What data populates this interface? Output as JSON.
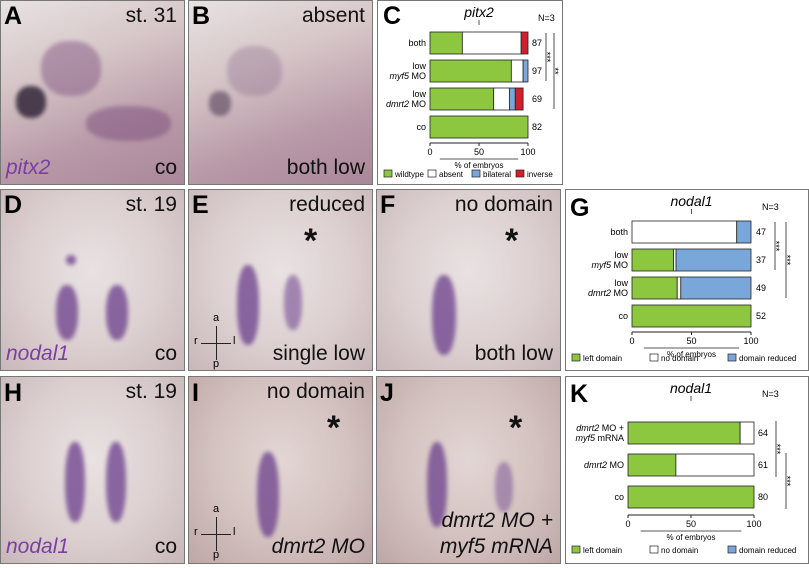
{
  "panels": {
    "A": {
      "letter": "A",
      "top_right": "st. 31",
      "bottom_left": "pitx2",
      "bottom_right": "co"
    },
    "B": {
      "letter": "B",
      "top_right": "absent",
      "bottom_right": "both low"
    },
    "D": {
      "letter": "D",
      "top_right": "st. 19",
      "bottom_left": "nodal1",
      "bottom_right": "co"
    },
    "E": {
      "letter": "E",
      "top_right": "reduced",
      "bottom_right": "single low",
      "star": "*"
    },
    "F": {
      "letter": "F",
      "top_right": "no domain",
      "bottom_right": "both low",
      "star": "*"
    },
    "H": {
      "letter": "H",
      "top_right": "st. 19",
      "bottom_left": "nodal1",
      "bottom_right": "co"
    },
    "I": {
      "letter": "I",
      "top_right": "no domain",
      "bottom_right": "dmrt2 MO",
      "star": "*"
    },
    "J": {
      "letter": "J",
      "bottom_right_line1": "dmrt2 MO +",
      "bottom_right_line2": "myf5 mRNA",
      "star": "*"
    },
    "C": {
      "letter": "C"
    },
    "G": {
      "letter": "G"
    },
    "K": {
      "letter": "K"
    }
  },
  "compass": {
    "a": "a",
    "p": "p",
    "r": "r",
    "l": "l"
  },
  "colors": {
    "wildtype": "#8dc63f",
    "left": "#8dc63f",
    "absent": "#ffffff",
    "bilateral": "#7aa7d9",
    "reduced": "#7aa7d9",
    "inverse": "#d0202e"
  },
  "chart_data": [
    {
      "id": "C",
      "type": "bar",
      "orientation": "horizontal",
      "stacked": true,
      "title": "pitx2",
      "n_label": "N=3",
      "xlabel": "% of embryos",
      "xlim": [
        0,
        100
      ],
      "ticks": [
        0,
        50,
        100
      ],
      "categories": [
        [
          "both"
        ],
        [
          "low",
          "myf5 MO"
        ],
        [
          "low",
          "dmrt2 MO"
        ],
        [
          "co"
        ]
      ],
      "counts": [
        "87",
        "97",
        "69",
        "82"
      ],
      "series": [
        {
          "name": "wildtype",
          "color": "#8dc63f",
          "values": [
            33,
            83,
            65,
            100
          ]
        },
        {
          "name": "absent",
          "color": "#ffffff",
          "values": [
            60,
            12,
            16,
            0
          ]
        },
        {
          "name": "bilateral",
          "color": "#7aa7d9",
          "values": [
            0,
            5,
            6,
            0
          ]
        },
        {
          "name": "inverse",
          "color": "#d0202e",
          "values": [
            7,
            0,
            8,
            0
          ]
        }
      ],
      "significance": [
        "***",
        "**"
      ]
    },
    {
      "id": "G",
      "type": "bar",
      "orientation": "horizontal",
      "stacked": true,
      "title": "nodal1",
      "n_label": "N=3",
      "xlabel": "% of embryos",
      "xlim": [
        0,
        100
      ],
      "ticks": [
        0,
        50,
        100
      ],
      "categories": [
        [
          "both"
        ],
        [
          "low",
          "myf5 MO"
        ],
        [
          "low",
          "dmrt2 MO"
        ],
        [
          "co"
        ]
      ],
      "counts": [
        "47",
        "37",
        "49",
        "52"
      ],
      "series": [
        {
          "name": "left domain",
          "color": "#8dc63f",
          "values": [
            0,
            35,
            38,
            100
          ]
        },
        {
          "name": "no domain",
          "color": "#ffffff",
          "values": [
            88,
            2,
            3,
            0
          ]
        },
        {
          "name": "domain reduced",
          "color": "#7aa7d9",
          "values": [
            12,
            63,
            59,
            0
          ]
        }
      ],
      "significance": [
        "***",
        "***"
      ]
    },
    {
      "id": "K",
      "type": "bar",
      "orientation": "horizontal",
      "stacked": true,
      "title": "nodal1",
      "n_label": "N=3",
      "xlabel": "% of embryos",
      "xlim": [
        0,
        100
      ],
      "ticks": [
        0,
        50,
        100
      ],
      "categories": [
        [
          "dmrt2 MO +",
          "myf5 mRNA"
        ],
        [
          "dmrt2 MO"
        ],
        [
          "co"
        ]
      ],
      "counts": [
        "64",
        "61",
        "80"
      ],
      "series": [
        {
          "name": "left domain",
          "color": "#8dc63f",
          "values": [
            89,
            38,
            100
          ]
        },
        {
          "name": "no domain",
          "color": "#ffffff",
          "values": [
            11,
            62,
            0
          ]
        },
        {
          "name": "domain reduced",
          "color": "#7aa7d9",
          "values": [
            0,
            0,
            0
          ]
        }
      ],
      "significance": [
        "***",
        "***"
      ]
    }
  ]
}
